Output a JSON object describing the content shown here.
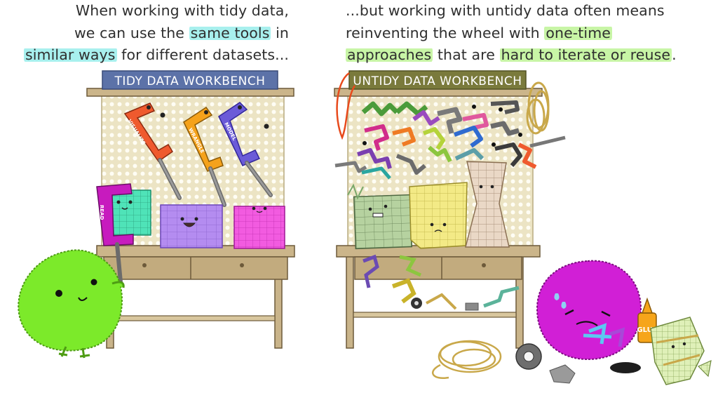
{
  "captions": {
    "left": {
      "line1": "When working with tidy data,",
      "line2_pre": "we can use the ",
      "line2_hl": "same tools",
      "line2_post": " in",
      "line3_hl": "similar ways",
      "line3_post": " for different datasets..."
    },
    "right": {
      "line1": "...but working with untidy data often means",
      "line2_pre": "reinventing the wheel with ",
      "line2_hl": "one-time",
      "line3_hl1": "approaches",
      "line3_mid": " that are ",
      "line3_hl2": "hard to iterate or reuse",
      "line3_post": "."
    }
  },
  "signs": {
    "tidy": "TIDY DATA WORKBENCH",
    "untidy": "UNTIDY DATA WORKBENCH"
  },
  "tools": {
    "visualize": "VISUALIZE",
    "wrangle": "WRANGLE",
    "model": "MODEL",
    "read": "READ"
  },
  "glue_label": "GLUE",
  "colors": {
    "highlight_cyan": "#a8f0ee",
    "highlight_green": "#c8f5a6",
    "tidy_sign": "#5c72a8",
    "untidy_sign": "#7a7a3c",
    "bench_wood": "#c9b48a",
    "pegboard": "#ece4c4",
    "green_monster": "#7cea2a",
    "magenta_monster": "#d11fd6"
  }
}
